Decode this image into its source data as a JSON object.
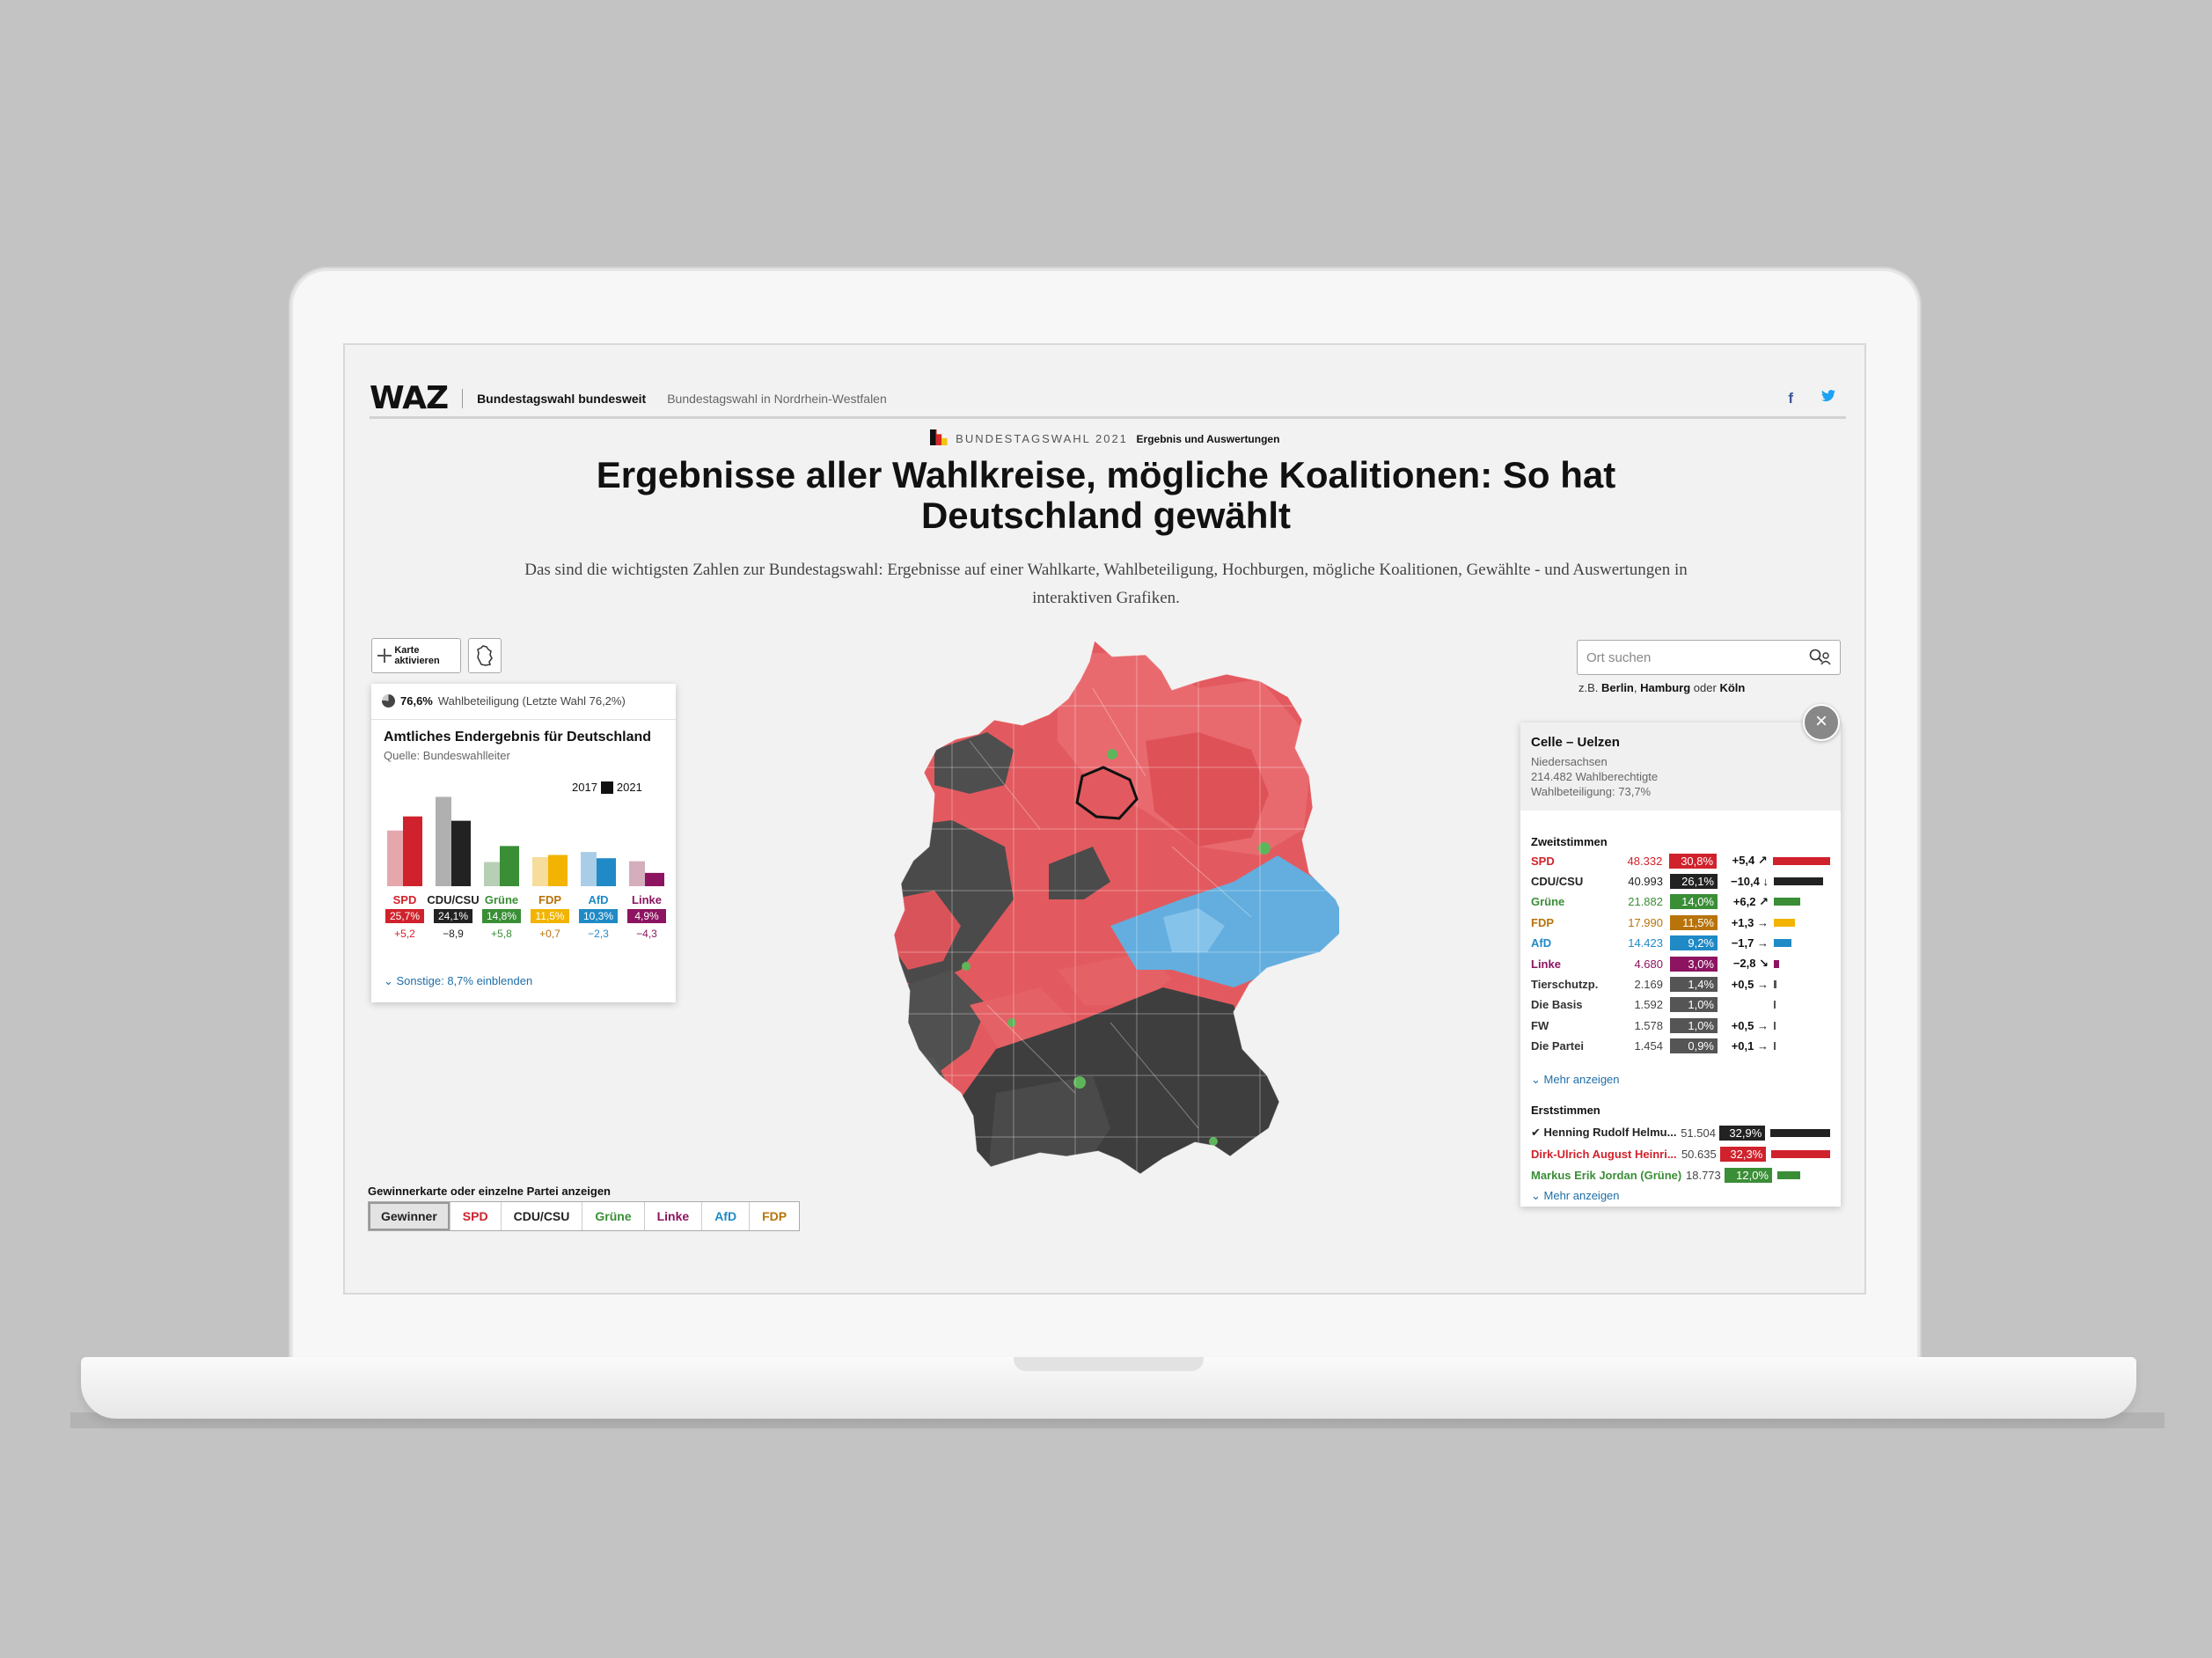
{
  "header": {
    "logo": "WAZ",
    "nav": [
      "Bundestagswahl bundesweit",
      "Bundestagswahl in Nordrhein-Westfalen"
    ],
    "social": [
      "f",
      "t"
    ]
  },
  "kicker": {
    "label": "BUNDESTAGSWAHL 2021",
    "sub": "Ergebnis und Auswertungen"
  },
  "title": "Ergebnisse aller Wahlkreise, mögliche Koalitionen: So hat Deutschland gewählt",
  "intro": "Das sind die wichtigsten Zahlen zur Bundestagswahl: Ergebnisse auf einer Wahlkarte, Wahlbeteiligung, Hochburgen, mögliche Koalitionen, Gewählte - und Auswertungen in interaktiven Grafiken.",
  "map_controls": {
    "activate_label": "Karte aktivieren"
  },
  "results": {
    "turnout_value": "76,6%",
    "turnout_label": "Wahlbeteiligung (Letzte Wahl 76,2%)",
    "turnout_fraction": 0.766,
    "title": "Amtliches Endergebnis für Deutschland",
    "source": "Quelle: Bundeswahlleiter",
    "legend": [
      "2017",
      "2021"
    ],
    "more": "Sonstige: 8,7% einblenden"
  },
  "chart_data": {
    "type": "bar",
    "categories": [
      "SPD",
      "CDU/CSU",
      "Grüne",
      "FDP",
      "AfD",
      "Linke"
    ],
    "series": [
      {
        "name": "2017",
        "values": [
          20.5,
          32.9,
          8.9,
          10.7,
          12.6,
          9.2
        ]
      },
      {
        "name": "2021",
        "values": [
          25.7,
          24.1,
          14.8,
          11.5,
          10.3,
          4.9
        ]
      }
    ],
    "pct_labels": [
      "25,7%",
      "24,1%",
      "14,8%",
      "11,5%",
      "10,3%",
      "4,9%"
    ],
    "diff_labels": [
      "+5,2",
      "−8,9",
      "+5,8",
      "+0,7",
      "−2,3",
      "−4,3"
    ],
    "colors": [
      "#d0222c",
      "#222222",
      "#3a8e36",
      "#f2b400",
      "#1f8ac6",
      "#8c1460"
    ],
    "colors_2017": [
      "#e6a7ac",
      "#b0b0b0",
      "#b7cfb5",
      "#f6dd9b",
      "#a9cde6",
      "#d4aebd"
    ],
    "label_colors": [
      "#d0222c",
      "#222222",
      "#3a8e36",
      "#b8730a",
      "#1f8ac6",
      "#8c1460"
    ],
    "ylim": [
      0,
      35
    ]
  },
  "search": {
    "placeholder": "Ort suchen",
    "hint_prefix": "z.B.",
    "hint_a": "Berlin",
    "hint_b": "Hamburg",
    "hint_or": "oder",
    "hint_c": "Köln"
  },
  "district": {
    "name": "Celle – Uelzen",
    "state": "Niedersachsen",
    "eligible": "214.482 Wahlberechtigte",
    "turnout": "Wahlbeteiligung: 73,7%",
    "zweit_title": "Zweitstimmen",
    "zweit": [
      {
        "party": "SPD",
        "votes": "48.332",
        "pct": "30,8%",
        "diff": "+5,4 ↗",
        "color": "#d0222c",
        "pv": 30.8
      },
      {
        "party": "CDU/CSU",
        "votes": "40.993",
        "pct": "26,1%",
        "diff": "−10,4 ↓",
        "color": "#222222",
        "pv": 26.1
      },
      {
        "party": "Grüne",
        "votes": "21.882",
        "pct": "14,0%",
        "diff": "+6,2 ↗",
        "color": "#3a8e36",
        "pv": 14.0
      },
      {
        "party": "FDP",
        "votes": "17.990",
        "pct": "11,5%",
        "diff": "+1,3 →",
        "color": "#b8730a",
        "bar": "#f2b400",
        "pv": 11.5
      },
      {
        "party": "AfD",
        "votes": "14.423",
        "pct": "9,2%",
        "diff": "−1,7 →",
        "color": "#1f8ac6",
        "pv": 9.2
      },
      {
        "party": "Linke",
        "votes": "4.680",
        "pct": "3,0%",
        "diff": "−2,8 ↘",
        "color": "#8c1460",
        "pv": 3.0
      },
      {
        "party": "Tierschutzp.",
        "votes": "2.169",
        "pct": "1,4%",
        "diff": "+0,5 →",
        "color": "#555555",
        "pv": 1.4
      },
      {
        "party": "Die Basis",
        "votes": "1.592",
        "pct": "1,0%",
        "diff": "",
        "color": "#555555",
        "pv": 1.0
      },
      {
        "party": "FW",
        "votes": "1.578",
        "pct": "1,0%",
        "diff": "+0,5 →",
        "color": "#555555",
        "pv": 1.0
      },
      {
        "party": "Die Partei",
        "votes": "1.454",
        "pct": "0,9%",
        "diff": "+0,1 →",
        "color": "#555555",
        "pv": 0.9
      }
    ],
    "more1": "Mehr anzeigen",
    "erst_title": "Erststimmen",
    "erst": [
      {
        "name": "Henning Rudolf Helmu...",
        "votes": "51.504",
        "pct": "32,9%",
        "color": "#222222",
        "pv": 32.9,
        "winner": true
      },
      {
        "name": "Dirk-Ulrich August Heinri...",
        "votes": "50.635",
        "pct": "32,3%",
        "color": "#d0222c",
        "pv": 32.3
      },
      {
        "name": "Markus Erik Jordan (Grüne)",
        "votes": "18.773",
        "pct": "12,0%",
        "color": "#3a8e36",
        "pv": 12.0
      }
    ],
    "more2": "Mehr anzeigen"
  },
  "selector": {
    "label": "Gewinnerkarte oder einzelne Partei anzeigen",
    "tabs": [
      {
        "label": "Gewinner",
        "color": "#222222"
      },
      {
        "label": "SPD",
        "color": "#d0222c"
      },
      {
        "label": "CDU/CSU",
        "color": "#222222"
      },
      {
        "label": "Grüne",
        "color": "#3a8e36"
      },
      {
        "label": "Linke",
        "color": "#8c1460"
      },
      {
        "label": "AfD",
        "color": "#1f8ac6"
      },
      {
        "label": "FDP",
        "color": "#b8730a"
      }
    ]
  }
}
